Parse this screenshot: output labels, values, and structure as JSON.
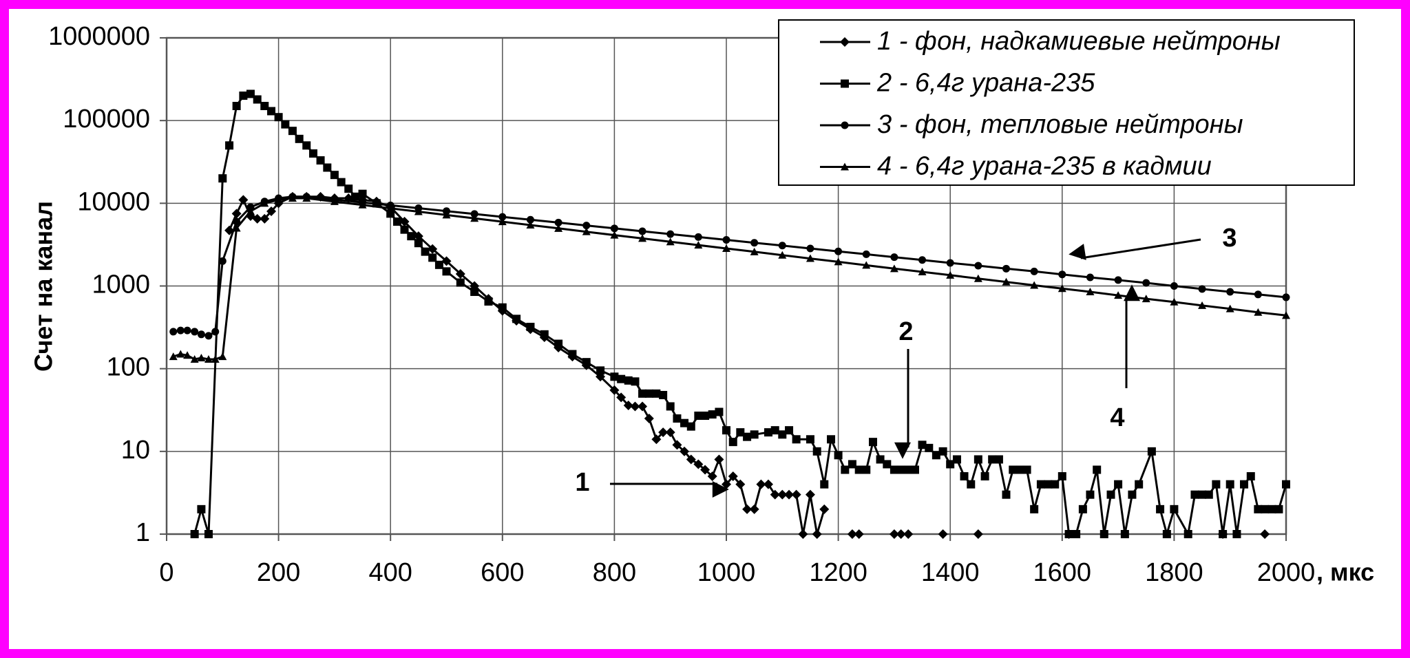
{
  "chart_data": {
    "type": "line",
    "y_label": "Счет на канал",
    "x_label": ", мкс",
    "xlim": [
      0,
      2000
    ],
    "xticks": [
      0,
      200,
      400,
      600,
      800,
      1000,
      1200,
      1400,
      1600,
      1800,
      2000
    ],
    "ylim": [
      1,
      1000000
    ],
    "yticks": [
      1,
      10,
      100,
      1000,
      10000,
      100000,
      1000000
    ],
    "log_y": true,
    "grid": true,
    "legend": "upper right",
    "annotations": [
      "1",
      "2",
      "3",
      "4"
    ],
    "series": [
      {
        "name": "1 - фон, надкамиевые нейтроны",
        "color": "#000000",
        "marker": "diamond",
        "x": [
          112,
          125,
          137,
          150,
          162,
          175,
          187,
          200,
          225,
          250,
          275,
          300,
          325,
          350,
          375,
          400,
          425,
          450,
          475,
          500,
          525,
          550,
          575,
          600,
          625,
          650,
          675,
          700,
          725,
          750,
          775,
          800,
          812,
          825,
          837,
          850,
          862,
          875,
          887,
          900,
          912,
          925,
          937,
          950,
          962,
          975,
          987,
          1000,
          1012,
          1025,
          1037,
          1050,
          1062,
          1075,
          1087,
          1100,
          1112,
          1125,
          1137,
          1150,
          1162,
          1175,
          1200,
          1225,
          1237,
          1250,
          1300,
          1312,
          1325,
          1350,
          1387,
          1400,
          1450,
          1475,
          1612,
          1625,
          1887,
          1900,
          1962
        ],
        "values": [
          4700,
          7500,
          11000,
          7000,
          6500,
          6500,
          8000,
          10000,
          12000,
          12000,
          12000,
          11500,
          11500,
          11000,
          10500,
          9000,
          6000,
          4000,
          2800,
          2000,
          1400,
          1000,
          700,
          500,
          380,
          300,
          240,
          180,
          140,
          110,
          80,
          55,
          45,
          36,
          35,
          35,
          25,
          14,
          17,
          17,
          12,
          10,
          8,
          7,
          6,
          5,
          8,
          4,
          5,
          4,
          2,
          2,
          4,
          4,
          3,
          3,
          3,
          3,
          1,
          3,
          1,
          2,
          null,
          1,
          1,
          null,
          1,
          1,
          1,
          null,
          1,
          null,
          1,
          null,
          1,
          null,
          1,
          null,
          1
        ]
      },
      {
        "name": "2 - 6,4г урана-235",
        "color": "#000000",
        "marker": "square",
        "x": [
          50,
          62,
          75,
          100,
          112,
          125,
          137,
          150,
          162,
          175,
          187,
          200,
          212,
          225,
          237,
          250,
          262,
          275,
          287,
          300,
          312,
          325,
          337,
          350,
          375,
          400,
          412,
          425,
          437,
          450,
          462,
          475,
          487,
          500,
          525,
          550,
          575,
          600,
          625,
          650,
          675,
          700,
          725,
          750,
          775,
          800,
          812,
          825,
          837,
          850,
          862,
          875,
          887,
          900,
          912,
          925,
          937,
          950,
          962,
          975,
          987,
          1000,
          1012,
          1025,
          1037,
          1050,
          1075,
          1087,
          1100,
          1112,
          1125,
          1150,
          1162,
          1175,
          1187,
          1200,
          1212,
          1225,
          1237,
          1250,
          1262,
          1275,
          1287,
          1300,
          1312,
          1325,
          1337,
          1350,
          1362,
          1375,
          1387,
          1400,
          1412,
          1425,
          1437,
          1450,
          1462,
          1475,
          1487,
          1500,
          1512,
          1525,
          1537,
          1550,
          1562,
          1575,
          1587,
          1600,
          1612,
          1625,
          1637,
          1650,
          1662,
          1675,
          1687,
          1700,
          1712,
          1725,
          1737,
          1760,
          1775,
          1787,
          1800,
          1825,
          1837,
          1850,
          1862,
          1875,
          1887,
          1900,
          1912,
          1925,
          1937,
          1950,
          1962,
          1975,
          1987,
          2000
        ],
        "values": [
          1,
          2,
          1,
          20000,
          50000,
          150000,
          200000,
          210000,
          180000,
          150000,
          130000,
          110000,
          90000,
          75000,
          60000,
          50000,
          40000,
          33000,
          27000,
          22000,
          18000,
          15000,
          12000,
          13000,
          10000,
          7500,
          6000,
          4800,
          4000,
          3300,
          2600,
          2200,
          1800,
          1500,
          1100,
          850,
          650,
          550,
          400,
          320,
          260,
          200,
          150,
          120,
          95,
          80,
          75,
          72,
          70,
          50,
          50,
          50,
          48,
          35,
          25,
          22,
          20,
          27,
          27,
          28,
          30,
          18,
          13,
          17,
          15,
          16,
          17,
          18,
          16,
          18,
          14,
          14,
          10,
          4,
          14,
          9,
          6,
          7,
          6,
          6,
          13,
          8,
          7,
          6,
          6,
          6,
          6,
          12,
          11,
          9,
          10,
          7,
          8,
          5,
          4,
          8,
          5,
          8,
          8,
          3,
          6,
          6,
          6,
          2,
          4,
          4,
          4,
          5,
          1,
          1,
          2,
          3,
          6,
          1,
          3,
          4,
          1,
          3,
          4,
          10,
          2,
          1,
          2,
          1,
          3,
          3,
          3,
          4,
          1,
          4,
          1,
          4,
          5,
          2,
          2,
          2,
          2,
          4
        ]
      },
      {
        "name": "3 - фон, тепловые нейтроны",
        "color": "#000000",
        "marker": "circle",
        "x": [
          12,
          25,
          37,
          50,
          62,
          75,
          87,
          100,
          125,
          150,
          175,
          200,
          225,
          250,
          300,
          350,
          400,
          450,
          500,
          550,
          600,
          650,
          700,
          750,
          800,
          850,
          900,
          950,
          1000,
          1050,
          1100,
          1150,
          1200,
          1250,
          1300,
          1350,
          1400,
          1450,
          1500,
          1550,
          1600,
          1650,
          1700,
          1750,
          1800,
          1850,
          1900,
          1950,
          2000
        ],
        "values": [
          280,
          290,
          290,
          280,
          260,
          250,
          280,
          2000,
          6000,
          9000,
          10500,
          11500,
          12000,
          12000,
          11080,
          10230,
          9440,
          8710,
          8040,
          7420,
          6850,
          6320,
          5840,
          5390,
          4970,
          4590,
          4240,
          3910,
          3610,
          3330,
          3080,
          2840,
          2620,
          2420,
          2230,
          2060,
          1900,
          1760,
          1620,
          1500,
          1380,
          1270,
          1180,
          1090,
          1000,
          920,
          850,
          790,
          730
        ]
      },
      {
        "name": "4 - 6,4г урана-235 в кадмии",
        "color": "#000000",
        "marker": "triangle",
        "x": [
          12,
          25,
          37,
          50,
          62,
          75,
          87,
          100,
          125,
          150,
          175,
          200,
          225,
          250,
          300,
          350,
          400,
          450,
          500,
          550,
          600,
          650,
          700,
          750,
          800,
          850,
          900,
          950,
          1000,
          1050,
          1100,
          1150,
          1200,
          1250,
          1300,
          1350,
          1400,
          1450,
          1500,
          1550,
          1600,
          1650,
          1700,
          1750,
          1800,
          1850,
          1900,
          1950,
          2000
        ],
        "values": [
          140,
          150,
          145,
          130,
          135,
          130,
          130,
          140,
          5000,
          8000,
          10000,
          11000,
          11500,
          11500,
          10480,
          9540,
          8690,
          7920,
          7210,
          6570,
          5990,
          5450,
          4970,
          4530,
          4120,
          3760,
          3420,
          3120,
          2840,
          2590,
          2360,
          2150,
          1960,
          1780,
          1620,
          1480,
          1350,
          1230,
          1120,
          1020,
          930,
          850,
          770,
          700,
          640,
          580,
          530,
          480,
          440
        ]
      }
    ]
  }
}
